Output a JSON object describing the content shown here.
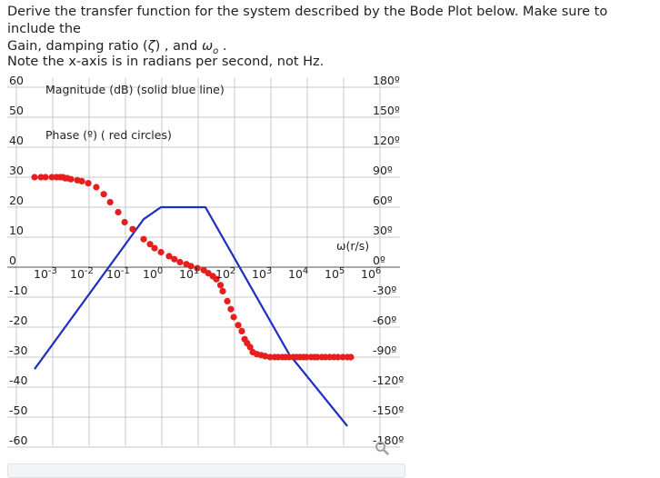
{
  "question": {
    "line1": "Derive the transfer function for the system described by the Bode Plot below. Make sure to include the",
    "line2_prefix": "Gain, damping ratio (",
    "zeta": "ζ",
    "line2_mid": ") , and ",
    "omega": "ω",
    "omega_sub": "o",
    "line2_suffix": " ."
  },
  "note": "Note the x-axis is in radians per second, not Hz.",
  "chart_data": {
    "type": "line",
    "title": "",
    "annotations": [
      "Magnitude (dB) (solid blue line)",
      "Phase (º) ( red circles)"
    ],
    "xlabel": "ω(r/s)",
    "xscale": "log",
    "xlim": [
      0.001,
      1000000
    ],
    "x_ticks": [
      {
        "base": "10",
        "exp": "-3"
      },
      {
        "base": "10",
        "exp": "-2"
      },
      {
        "base": "10",
        "exp": "-1"
      },
      {
        "base": "10",
        "exp": "0"
      },
      {
        "base": "10",
        "exp": "1"
      },
      {
        "base": "10",
        "exp": "2"
      },
      {
        "base": "10",
        "exp": "3"
      },
      {
        "base": "10",
        "exp": "4"
      },
      {
        "base": "10",
        "exp": "5"
      },
      {
        "base": "10",
        "exp": "6"
      }
    ],
    "y_left": {
      "label": "Magnitude (dB)",
      "ylim": [
        -60,
        60
      ],
      "ticks": [
        "60",
        "50",
        "40",
        "30",
        "20",
        "10",
        "0",
        "-10",
        "-20",
        "-30",
        "-40",
        "-50",
        "-60"
      ]
    },
    "y_right": {
      "label": "Phase (º)",
      "ylim": [
        -180,
        180
      ],
      "ticks": [
        "180º",
        "150º",
        "120º",
        "90º",
        "60º",
        "30º",
        "0º",
        "-30º",
        "-60º",
        "-90º",
        "-120º",
        "-150º",
        "-180º"
      ]
    },
    "grid": true,
    "series": [
      {
        "name": "Magnitude (dB)",
        "style": "solid line",
        "color": "#1f2fbf",
        "x": [
          0.001,
          1,
          3,
          50,
          10000,
          400000
        ],
        "y": [
          -34,
          16,
          20,
          20,
          -29,
          -53
        ]
      },
      {
        "name": "Phase (º)",
        "style": "circles",
        "color": "#e61e1e",
        "x": [
          0.001,
          0.0015,
          0.002,
          0.003,
          0.004,
          0.005,
          0.006,
          0.007,
          0.008,
          0.01,
          0.015,
          0.02,
          0.03,
          0.05,
          0.08,
          0.12,
          0.2,
          0.3,
          0.5,
          1,
          1.5,
          2,
          3,
          5,
          7,
          10,
          15,
          20,
          30,
          45,
          60,
          80,
          100,
          130,
          150,
          200,
          250,
          300,
          400,
          500,
          600,
          700,
          850,
          1000,
          1300,
          1700,
          2200,
          3000,
          4000,
          5000,
          6500,
          8000,
          10000,
          13000,
          16000,
          20000,
          25000,
          30000,
          40000,
          50000,
          60000,
          80000,
          100000,
          130000,
          170000,
          220000,
          300000,
          400000,
          500000
        ],
        "y": [
          90,
          90,
          90,
          90,
          90,
          90,
          90,
          89,
          89,
          88,
          87,
          86,
          84,
          80,
          73,
          65,
          55,
          45,
          38,
          28,
          23,
          19,
          15,
          11,
          8,
          5,
          3,
          1,
          -1,
          -3,
          -6,
          -9,
          -12,
          -18,
          -24,
          -34,
          -42,
          -50,
          -58,
          -64,
          -72,
          -76,
          -80,
          -85,
          -87,
          -88,
          -89,
          -90,
          -90,
          -90,
          -90,
          -90,
          -90,
          -90,
          -90,
          -90,
          -90,
          -90,
          -90,
          -90,
          -90,
          -90,
          -90,
          -90,
          -90,
          -90,
          -90,
          -90,
          -90
        ]
      }
    ]
  },
  "icons": {
    "zoom": "magnifier-icon"
  }
}
